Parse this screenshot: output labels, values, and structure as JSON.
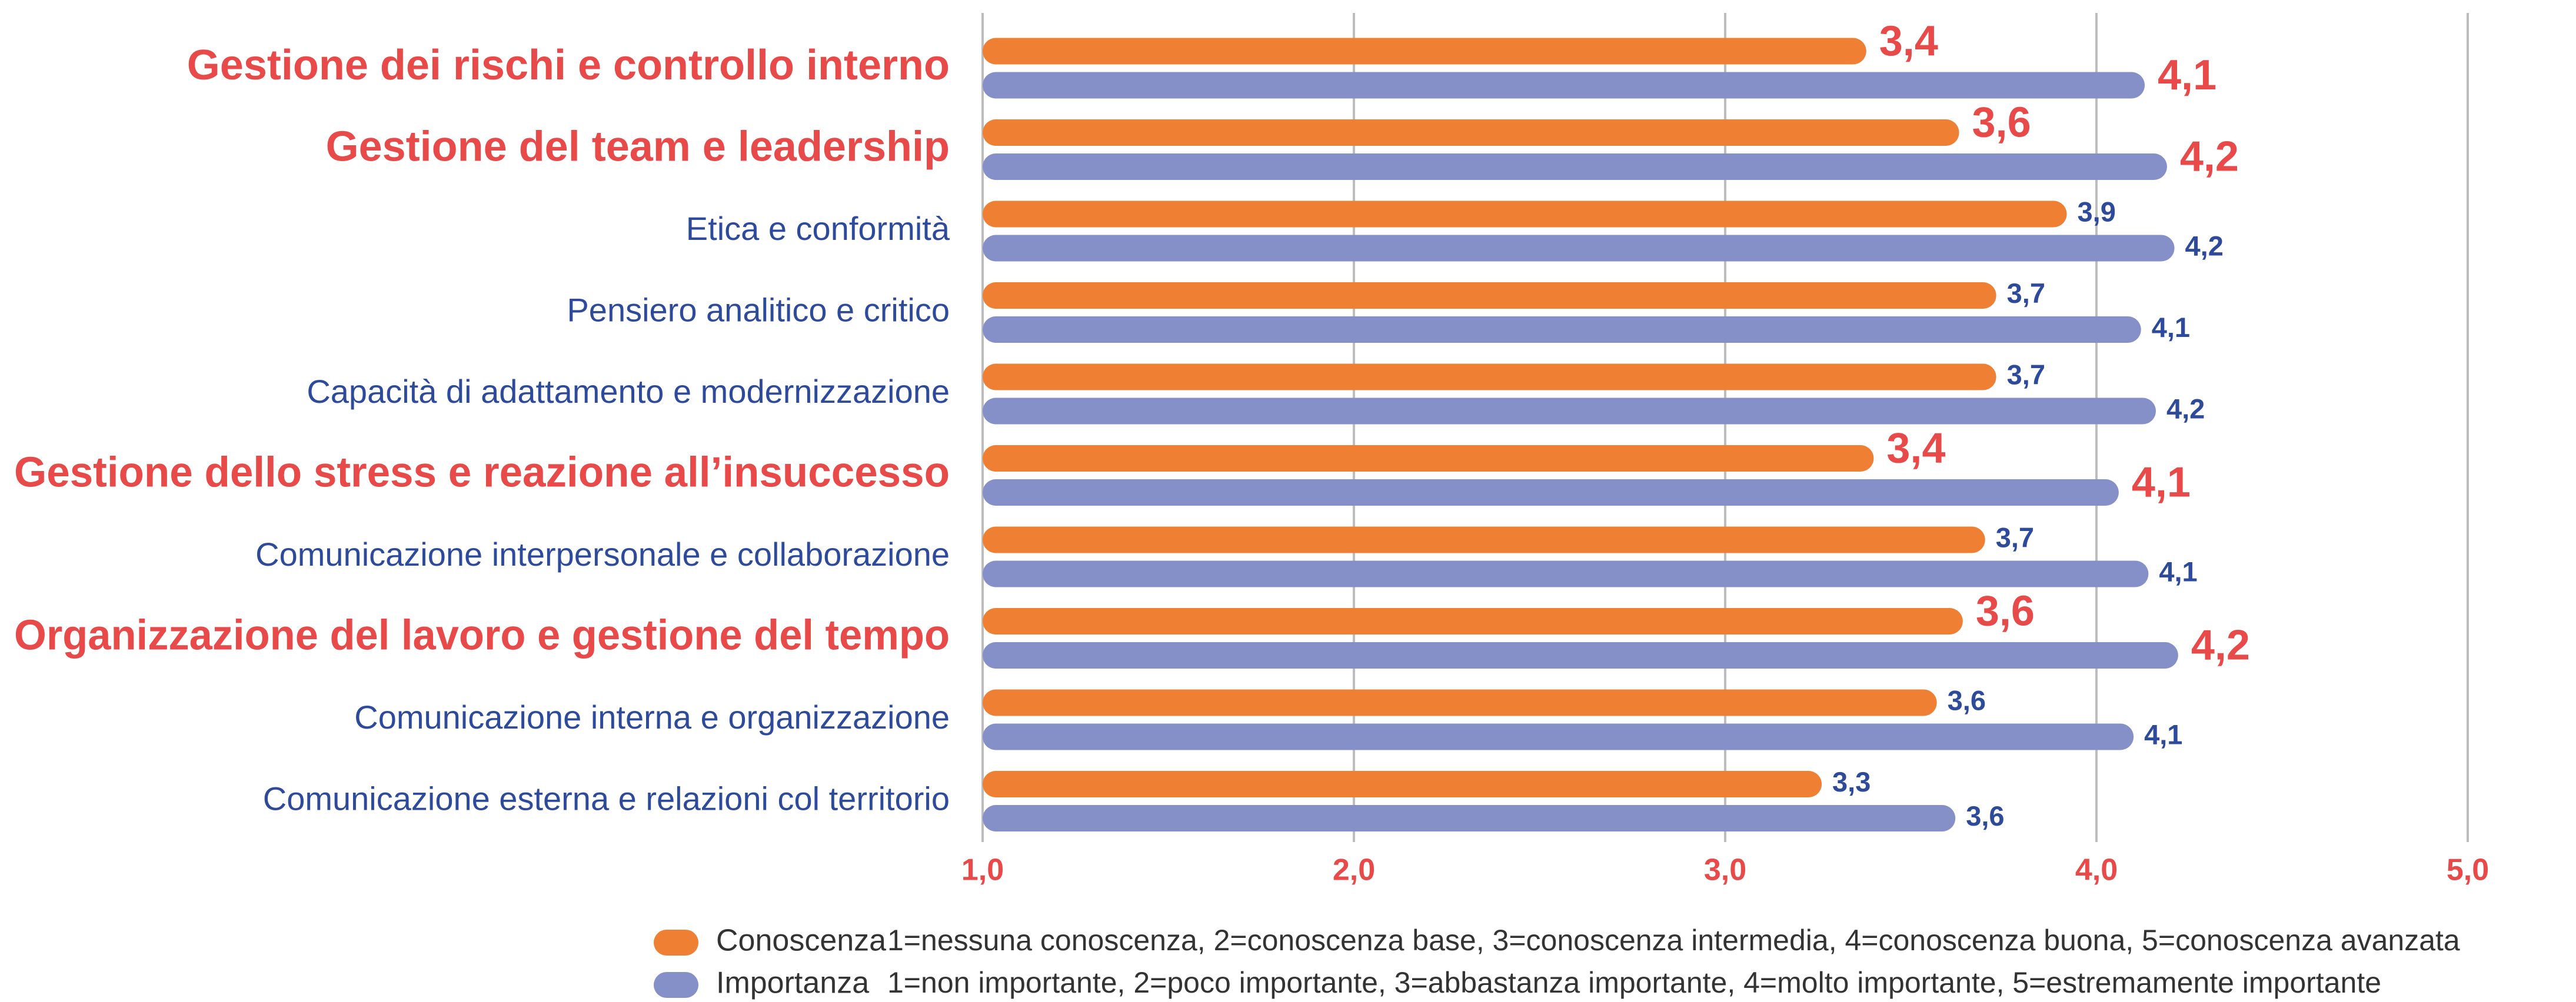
{
  "chart_data": {
    "type": "bar",
    "orientation": "horizontal",
    "categories": [
      "Gestione dei rischi e controllo interno",
      "Gestione del team e leadership",
      "Etica e conformità",
      "Pensiero analitico e critico",
      "Capacità di adattamento e modernizzazione",
      "Gestione dello stress e reazione all’insuccesso",
      "Comunicazione interpersonale e collaborazione",
      "Organizzazione del lavoro e gestione del tempo",
      "Comunicazione interna e organizzazione",
      "Comunicazione esterna e relazioni col territorio"
    ],
    "highlight": [
      0,
      1,
      5,
      7
    ],
    "highlight_color": "#e84a4a",
    "series": [
      {
        "name": "Conoscenza",
        "color": "#ef7f33",
        "description": "1=nessuna conoscenza, 2=conoscenza base, 3=conoscenza intermedia, 4=conoscenza buona, 5=conoscenza avanzata",
        "values": [
          3.38,
          3.63,
          3.92,
          3.73,
          3.73,
          3.4,
          3.7,
          3.64,
          3.57,
          3.26
        ],
        "value_labels": [
          "3,4",
          "3,6",
          "3,9",
          "3,7",
          "3,7",
          "3,4",
          "3,7",
          "3,6",
          "3,6",
          "3,3"
        ]
      },
      {
        "name": "Importanza",
        "color": "#8590c9",
        "description": "1=non importante, 2=poco importante, 3=abbastanza importante, 4=molto importante, 5=estremamente importante",
        "values": [
          4.13,
          4.19,
          4.21,
          4.12,
          4.16,
          4.06,
          4.14,
          4.22,
          4.1,
          3.62
        ],
        "value_labels": [
          "4,1",
          "4,2",
          "4,2",
          "4,1",
          "4,2",
          "4,1",
          "4,1",
          "4,2",
          "4,1",
          "3,6"
        ]
      }
    ],
    "xlim": [
      1,
      5
    ],
    "xticks": [
      {
        "value": 1,
        "label": "1,0"
      },
      {
        "value": 2,
        "label": "2,0"
      },
      {
        "value": 3,
        "label": "3,0"
      },
      {
        "value": 4,
        "label": "4,0"
      },
      {
        "value": 5,
        "label": "5,0"
      }
    ],
    "grid": true
  }
}
